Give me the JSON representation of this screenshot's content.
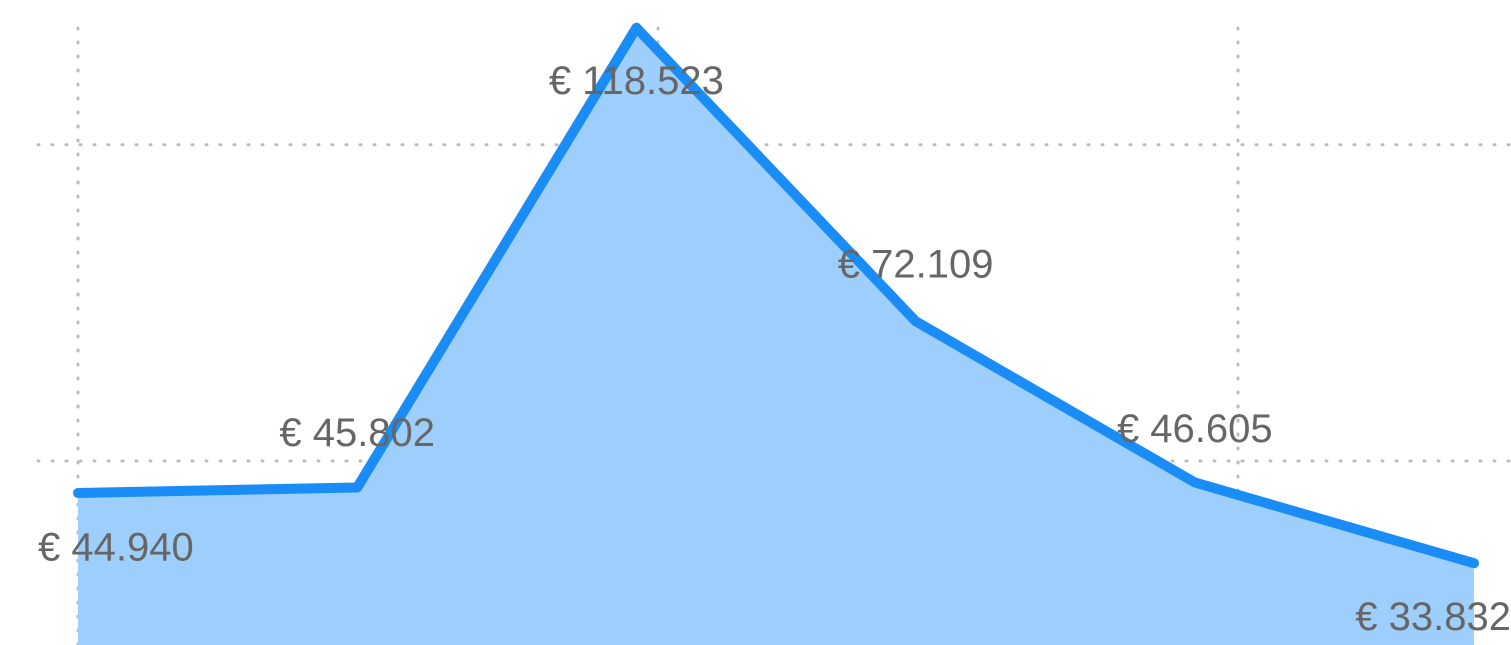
{
  "chart_data": {
    "type": "area",
    "categories": [
      null,
      null,
      null,
      null,
      null,
      null
    ],
    "values": [
      44940,
      45802,
      118523,
      72109,
      46605,
      33832
    ],
    "value_labels": [
      "€ 44.940",
      "€ 45.802",
      "€ 118.523",
      "€ 72.109",
      "€ 46.605",
      "€ 33.832"
    ],
    "color": "#1a8cf5",
    "fill_color": "#9ecffc",
    "ylim": [
      20900,
      122900
    ],
    "yticks": [
      50000,
      100000
    ],
    "grid": true
  }
}
